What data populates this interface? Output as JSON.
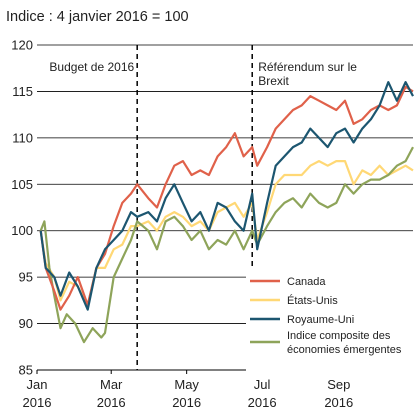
{
  "chart_data": {
    "type": "line",
    "subtitle": "Indice : 4 janvier 2016 = 100",
    "ylim": [
      85,
      120
    ],
    "yticks": [
      85,
      90,
      95,
      100,
      105,
      110,
      115,
      120
    ],
    "xlim": [
      "2016-01-04",
      "2016-10-31"
    ],
    "xticks": [
      {
        "date": "2016-01-01",
        "month": "Jan",
        "year": "2016"
      },
      {
        "date": "2016-03-01",
        "month": "Mar",
        "year": "2016"
      },
      {
        "date": "2016-05-01",
        "month": "May",
        "year": "2016"
      },
      {
        "date": "2016-07-01",
        "month": "Jul",
        "year": "2016"
      },
      {
        "date": "2016-09-01",
        "month": "Sep",
        "year": "2016"
      }
    ],
    "grid": "horizontal",
    "legend_position": "bottom-right",
    "annotations": [
      {
        "date": "2016-03-22",
        "text": [
          "Budget de 2016"
        ],
        "label_side": "left"
      },
      {
        "date": "2016-06-23",
        "text": [
          "Référendum sur le",
          "Brexit"
        ],
        "label_side": "right"
      }
    ],
    "series": [
      {
        "name": "Canada",
        "color": "#e0614a",
        "data": [
          [
            "2016-01-04",
            100
          ],
          [
            "2016-01-08",
            96
          ],
          [
            "2016-01-15",
            93.5
          ],
          [
            "2016-01-20",
            91.5
          ],
          [
            "2016-01-27",
            93
          ],
          [
            "2016-02-03",
            95
          ],
          [
            "2016-02-11",
            92
          ],
          [
            "2016-02-18",
            96
          ],
          [
            "2016-02-25",
            97.5
          ],
          [
            "2016-03-03",
            100.5
          ],
          [
            "2016-03-10",
            103
          ],
          [
            "2016-03-17",
            104
          ],
          [
            "2016-03-22",
            105
          ],
          [
            "2016-03-31",
            103.5
          ],
          [
            "2016-04-07",
            102.5
          ],
          [
            "2016-04-14",
            105
          ],
          [
            "2016-04-21",
            107
          ],
          [
            "2016-04-28",
            107.5
          ],
          [
            "2016-05-05",
            106
          ],
          [
            "2016-05-12",
            106.5
          ],
          [
            "2016-05-19",
            106
          ],
          [
            "2016-05-26",
            108
          ],
          [
            "2016-06-02",
            109
          ],
          [
            "2016-06-09",
            110.5
          ],
          [
            "2016-06-16",
            108
          ],
          [
            "2016-06-23",
            109
          ],
          [
            "2016-06-27",
            107
          ],
          [
            "2016-07-05",
            109
          ],
          [
            "2016-07-12",
            111
          ],
          [
            "2016-07-19",
            112
          ],
          [
            "2016-07-26",
            113
          ],
          [
            "2016-08-02",
            113.5
          ],
          [
            "2016-08-09",
            114.5
          ],
          [
            "2016-08-16",
            114
          ],
          [
            "2016-08-23",
            113.5
          ],
          [
            "2016-08-30",
            113
          ],
          [
            "2016-09-06",
            114
          ],
          [
            "2016-09-13",
            111.5
          ],
          [
            "2016-09-20",
            112
          ],
          [
            "2016-09-27",
            113
          ],
          [
            "2016-10-04",
            113.5
          ],
          [
            "2016-10-11",
            113
          ],
          [
            "2016-10-18",
            113.5
          ],
          [
            "2016-10-25",
            115.5
          ],
          [
            "2016-10-31",
            115
          ]
        ]
      },
      {
        "name": "États-Unis",
        "color": "#ffd875",
        "data": [
          [
            "2016-01-04",
            100
          ],
          [
            "2016-01-08",
            96.5
          ],
          [
            "2016-01-15",
            95
          ],
          [
            "2016-01-20",
            92.5
          ],
          [
            "2016-01-27",
            94.5
          ],
          [
            "2016-02-03",
            94
          ],
          [
            "2016-02-11",
            92
          ],
          [
            "2016-02-18",
            96
          ],
          [
            "2016-02-25",
            96
          ],
          [
            "2016-03-03",
            98
          ],
          [
            "2016-03-10",
            98.5
          ],
          [
            "2016-03-17",
            100.5
          ],
          [
            "2016-03-22",
            100.5
          ],
          [
            "2016-03-31",
            101
          ],
          [
            "2016-04-07",
            100
          ],
          [
            "2016-04-14",
            101.5
          ],
          [
            "2016-04-21",
            102
          ],
          [
            "2016-04-28",
            101.5
          ],
          [
            "2016-05-05",
            100.5
          ],
          [
            "2016-05-12",
            101
          ],
          [
            "2016-05-19",
            100
          ],
          [
            "2016-05-26",
            102
          ],
          [
            "2016-06-02",
            102.5
          ],
          [
            "2016-06-09",
            103
          ],
          [
            "2016-06-16",
            101.5
          ],
          [
            "2016-06-23",
            103
          ],
          [
            "2016-06-27",
            99
          ],
          [
            "2016-07-05",
            102
          ],
          [
            "2016-07-12",
            105
          ],
          [
            "2016-07-19",
            106
          ],
          [
            "2016-07-26",
            106
          ],
          [
            "2016-08-02",
            106
          ],
          [
            "2016-08-09",
            107
          ],
          [
            "2016-08-16",
            107.5
          ],
          [
            "2016-08-23",
            107
          ],
          [
            "2016-08-30",
            107.5
          ],
          [
            "2016-09-06",
            107.5
          ],
          [
            "2016-09-13",
            105
          ],
          [
            "2016-09-20",
            106.5
          ],
          [
            "2016-09-27",
            106
          ],
          [
            "2016-10-04",
            107
          ],
          [
            "2016-10-11",
            106
          ],
          [
            "2016-10-18",
            106.5
          ],
          [
            "2016-10-25",
            107
          ],
          [
            "2016-10-31",
            106.5
          ]
        ]
      },
      {
        "name": "Royaume-Uni",
        "color": "#1c5670",
        "data": [
          [
            "2016-01-04",
            100
          ],
          [
            "2016-01-08",
            96
          ],
          [
            "2016-01-15",
            95
          ],
          [
            "2016-01-20",
            93
          ],
          [
            "2016-01-27",
            95.5
          ],
          [
            "2016-02-03",
            94
          ],
          [
            "2016-02-11",
            91.5
          ],
          [
            "2016-02-18",
            96
          ],
          [
            "2016-02-25",
            98
          ],
          [
            "2016-03-03",
            99
          ],
          [
            "2016-03-10",
            100
          ],
          [
            "2016-03-17",
            102
          ],
          [
            "2016-03-22",
            101.5
          ],
          [
            "2016-03-31",
            102
          ],
          [
            "2016-04-07",
            101
          ],
          [
            "2016-04-14",
            103.5
          ],
          [
            "2016-04-21",
            105
          ],
          [
            "2016-04-28",
            103
          ],
          [
            "2016-05-05",
            101
          ],
          [
            "2016-05-12",
            102
          ],
          [
            "2016-05-19",
            100
          ],
          [
            "2016-05-26",
            103
          ],
          [
            "2016-06-02",
            102.5
          ],
          [
            "2016-06-09",
            101
          ],
          [
            "2016-06-16",
            100
          ],
          [
            "2016-06-23",
            104
          ],
          [
            "2016-06-27",
            98
          ],
          [
            "2016-07-05",
            103
          ],
          [
            "2016-07-12",
            107
          ],
          [
            "2016-07-19",
            108
          ],
          [
            "2016-07-26",
            109
          ],
          [
            "2016-08-02",
            109.5
          ],
          [
            "2016-08-09",
            111
          ],
          [
            "2016-08-16",
            110
          ],
          [
            "2016-08-23",
            109
          ],
          [
            "2016-08-30",
            110.5
          ],
          [
            "2016-09-06",
            111
          ],
          [
            "2016-09-13",
            109.5
          ],
          [
            "2016-09-20",
            111
          ],
          [
            "2016-09-27",
            112
          ],
          [
            "2016-10-04",
            113.5
          ],
          [
            "2016-10-11",
            116
          ],
          [
            "2016-10-18",
            114
          ],
          [
            "2016-10-25",
            116
          ],
          [
            "2016-10-31",
            114.5
          ]
        ]
      },
      {
        "name": "Indice composite des économies émergentes",
        "color": "#8ea45a",
        "data": [
          [
            "2016-01-04",
            100
          ],
          [
            "2016-01-07",
            101
          ],
          [
            "2016-01-11",
            96
          ],
          [
            "2016-01-15",
            93
          ],
          [
            "2016-01-20",
            89.5
          ],
          [
            "2016-01-25",
            91
          ],
          [
            "2016-02-01",
            90
          ],
          [
            "2016-02-08",
            88
          ],
          [
            "2016-02-15",
            89.5
          ],
          [
            "2016-02-22",
            88.5
          ],
          [
            "2016-02-25",
            89
          ],
          [
            "2016-03-03",
            95
          ],
          [
            "2016-03-10",
            97
          ],
          [
            "2016-03-17",
            99
          ],
          [
            "2016-03-22",
            101
          ],
          [
            "2016-03-31",
            100
          ],
          [
            "2016-04-07",
            98
          ],
          [
            "2016-04-14",
            101
          ],
          [
            "2016-04-21",
            101.5
          ],
          [
            "2016-04-28",
            100.5
          ],
          [
            "2016-05-05",
            99
          ],
          [
            "2016-05-12",
            100
          ],
          [
            "2016-05-19",
            98
          ],
          [
            "2016-05-26",
            99
          ],
          [
            "2016-06-02",
            98.5
          ],
          [
            "2016-06-09",
            100
          ],
          [
            "2016-06-16",
            98
          ],
          [
            "2016-06-23",
            100
          ],
          [
            "2016-06-27",
            98.5
          ],
          [
            "2016-07-05",
            100.5
          ],
          [
            "2016-07-12",
            102
          ],
          [
            "2016-07-19",
            103
          ],
          [
            "2016-07-26",
            103.5
          ],
          [
            "2016-08-02",
            102.5
          ],
          [
            "2016-08-09",
            104
          ],
          [
            "2016-08-16",
            103
          ],
          [
            "2016-08-23",
            102.5
          ],
          [
            "2016-08-30",
            103
          ],
          [
            "2016-09-06",
            105
          ],
          [
            "2016-09-13",
            104
          ],
          [
            "2016-09-20",
            105
          ],
          [
            "2016-09-27",
            105.5
          ],
          [
            "2016-10-04",
            105.5
          ],
          [
            "2016-10-11",
            106
          ],
          [
            "2016-10-18",
            107
          ],
          [
            "2016-10-25",
            107.5
          ],
          [
            "2016-10-31",
            109
          ]
        ]
      }
    ]
  }
}
